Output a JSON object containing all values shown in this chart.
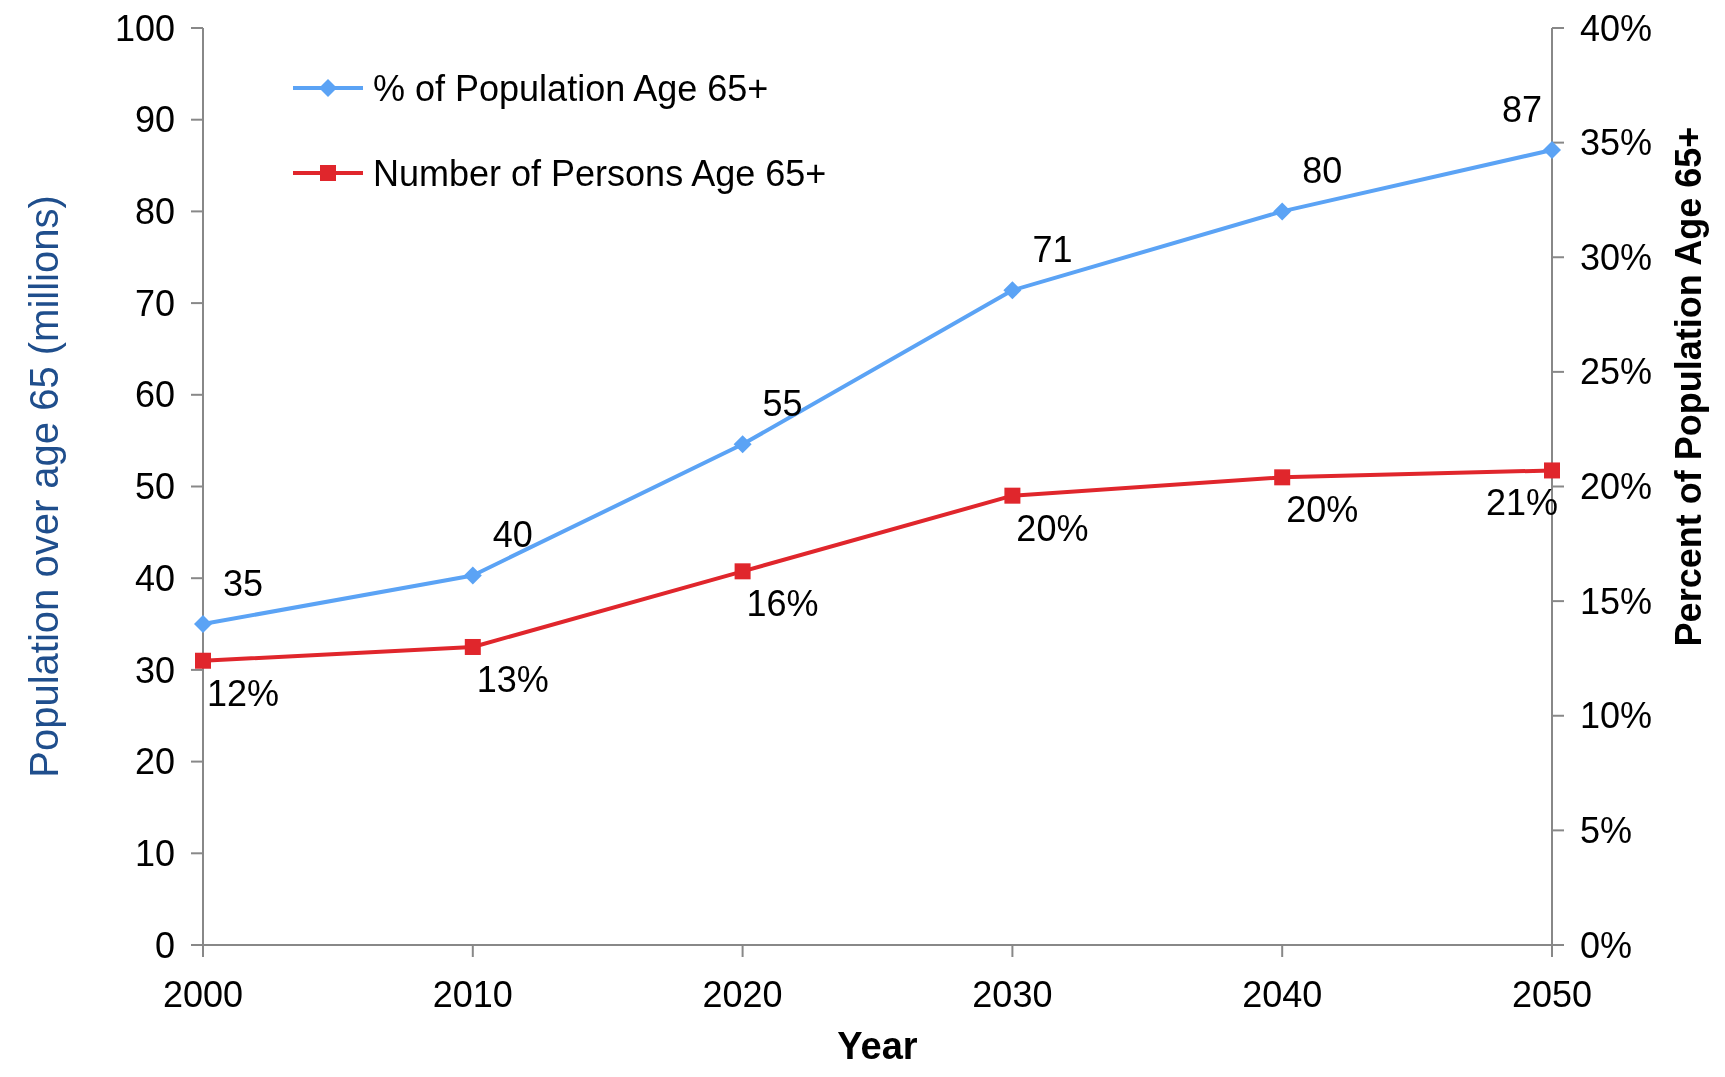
{
  "chart_data": {
    "type": "line",
    "xlabel": "Year",
    "ylabel": "Population over age 65 (millions)",
    "y2label": "Percent of Population Age 65+",
    "x": [
      2000,
      2010,
      2020,
      2030,
      2040,
      2050
    ],
    "xlim": [
      2000,
      2050
    ],
    "xticks": [
      2000,
      2010,
      2020,
      2030,
      2040,
      2050
    ],
    "ylim": [
      0,
      100
    ],
    "yticks": [
      0,
      10,
      20,
      30,
      40,
      50,
      60,
      70,
      80,
      90,
      100
    ],
    "y2lim": [
      0,
      40
    ],
    "y2ticks": [
      {
        "value": 0,
        "label": "0%"
      },
      {
        "value": 5,
        "label": "5%"
      },
      {
        "value": 10,
        "label": "10%"
      },
      {
        "value": 15,
        "label": "15%"
      },
      {
        "value": 20,
        "label": "20%"
      },
      {
        "value": 25,
        "label": "25%"
      },
      {
        "value": 30,
        "label": "30%"
      },
      {
        "value": 35,
        "label": "35%"
      },
      {
        "value": 40,
        "label": "40%"
      }
    ],
    "series": [
      {
        "name": "% of Population Age 65+",
        "color": "#5ba3f5",
        "marker": "diamond",
        "values": [
          35,
          40.3,
          54.6,
          71.4,
          80,
          86.7
        ],
        "value_labels": [
          "35",
          "40",
          "55",
          "71",
          "80",
          "87"
        ]
      },
      {
        "name": "Number of Persons Age 65+",
        "color": "#e0262c",
        "marker": "square",
        "axis": "y2",
        "values": [
          12.4,
          13,
          16.3,
          19.6,
          20.4,
          20.7
        ],
        "value_labels": [
          "12%",
          "13%",
          "16%",
          "20%",
          "20%",
          "21%"
        ]
      }
    ],
    "legend": "top left",
    "grid": false
  }
}
